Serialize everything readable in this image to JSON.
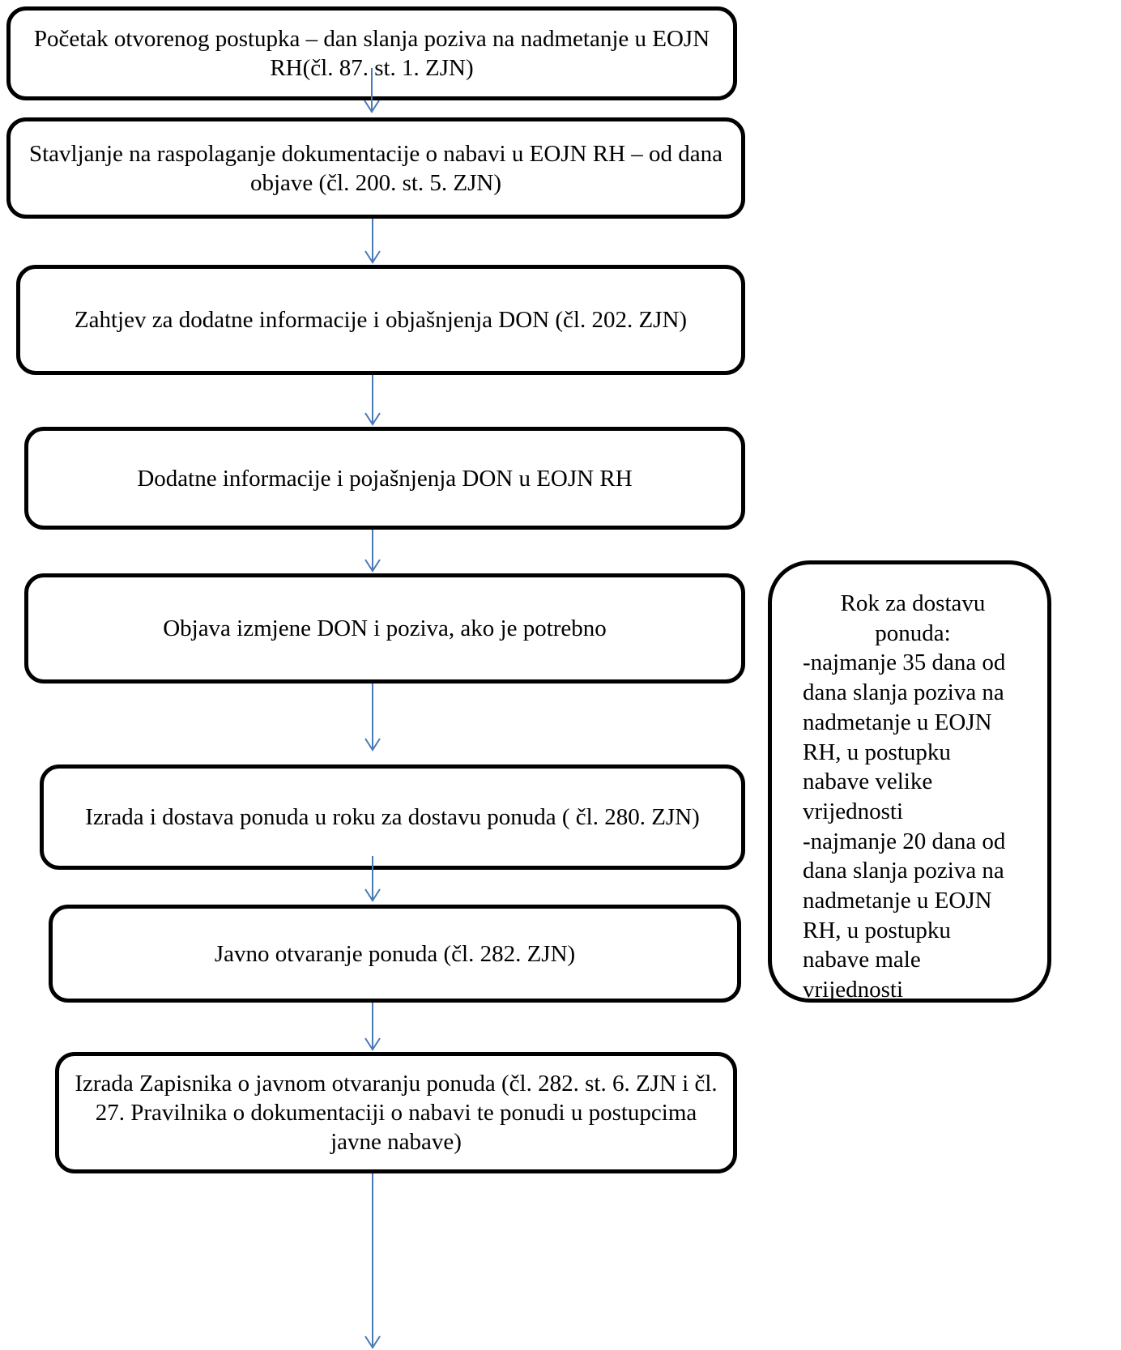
{
  "colors": {
    "box_border": "#000000",
    "arrow": "#4a7ab8",
    "background": "#ffffff",
    "text": "#000000"
  },
  "steps": [
    {
      "text": "Početak otvorenog postupka – dan slanja poziva na nadmetanje u EOJN RH(čl. 87. st. 1. ZJN)"
    },
    {
      "text": "Stavljanje na raspolaganje dokumentacije o nabavi u EOJN RH – od dana objave (čl. 200. st. 5. ZJN)"
    },
    {
      "text": "Zahtjev za dodatne informacije i objašnjenja DON (čl. 202. ZJN)"
    },
    {
      "text": "Dodatne informacije i pojašnjenja DON u EOJN RH"
    },
    {
      "text": "Objava izmjene DON i poziva, ako je potrebno"
    },
    {
      "text": "Izrada i dostava ponuda u roku za dostavu ponuda ( čl. 280. ZJN)"
    },
    {
      "text": "Javno otvaranje ponuda (čl. 282. ZJN)"
    },
    {
      "text": "Izrada Zapisnika o javnom otvaranju ponuda (čl. 282. st. 6. ZJN i čl. 27. Pravilnika o dokumentaciji o nabavi te ponudi u postupcima javne nabave)"
    }
  ],
  "side_note": {
    "title": "Rok za dostavu ponuda:",
    "body": "-najmanje 35 dana od dana slanja poziva na nadmetanje u EOJN RH, u postupku nabave velike vrijednosti\n-najmanje 20 dana od dana slanja poziva na nadmetanje u EOJN RH, u postupku nabave male vrijednosti"
  }
}
